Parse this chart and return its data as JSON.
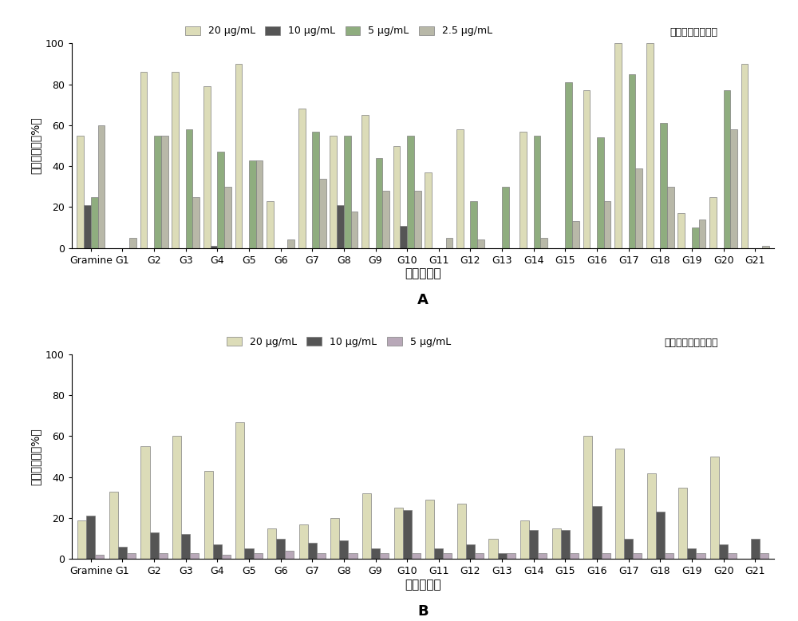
{
  "categories": [
    "Gramine",
    "G1",
    "G2",
    "G3",
    "G4",
    "G5",
    "G6",
    "G7",
    "G8",
    "G9",
    "G10",
    "G11",
    "G12",
    "G13",
    "G14",
    "G15",
    "G16",
    "G17",
    "G18",
    "G19",
    "G20",
    "G21"
  ],
  "chart_A": {
    "series_20": [
      55,
      0,
      86,
      86,
      79,
      90,
      23,
      68,
      55,
      65,
      50,
      37,
      58,
      0,
      57,
      0,
      77,
      100,
      100,
      17,
      25,
      90
    ],
    "series_10": [
      21,
      0,
      0,
      0,
      1,
      0,
      0,
      0,
      21,
      0,
      11,
      0,
      0,
      0,
      0,
      0,
      0,
      0,
      0,
      0,
      0,
      0
    ],
    "series_5": [
      25,
      0,
      55,
      58,
      47,
      43,
      0,
      57,
      55,
      44,
      55,
      0,
      23,
      30,
      55,
      81,
      54,
      85,
      61,
      10,
      77,
      0
    ],
    "series_25": [
      60,
      5,
      55,
      25,
      30,
      43,
      4,
      34,
      18,
      28,
      28,
      5,
      4,
      0,
      5,
      13,
      23,
      39,
      30,
      14,
      58,
      1
    ]
  },
  "chart_B": {
    "series_20": [
      19,
      33,
      55,
      60,
      43,
      67,
      15,
      17,
      20,
      32,
      25,
      29,
      27,
      10,
      19,
      15,
      60,
      54,
      42,
      35,
      50,
      0
    ],
    "series_10": [
      21,
      6,
      13,
      12,
      7,
      5,
      10,
      8,
      9,
      5,
      24,
      5,
      7,
      3,
      14,
      14,
      26,
      10,
      23,
      5,
      7,
      10
    ],
    "series_5": [
      2,
      3,
      3,
      3,
      2,
      3,
      4,
      3,
      3,
      3,
      3,
      3,
      3,
      3,
      3,
      3,
      3,
      3,
      3,
      3,
      3,
      3
    ]
  },
  "color_20": "#e0e0c0",
  "color_10": "#555555",
  "color_5_A": "#a0b090",
  "color_25": "#c0c0b0",
  "color_5_B": "#c0b0c0",
  "ylabel": "细胞存活率（%）",
  "xlabel": "化合物编号",
  "label_A": "A",
  "label_B": "B",
  "legend_A_text": "感染后加入化合物",
  "legend_B_text": "感染期间加入化合物",
  "legend_20": "20 μg/mL",
  "legend_10": "10 μg/mL",
  "legend_5": "5 μg/mL",
  "legend_25": "2.5 μg/mL"
}
